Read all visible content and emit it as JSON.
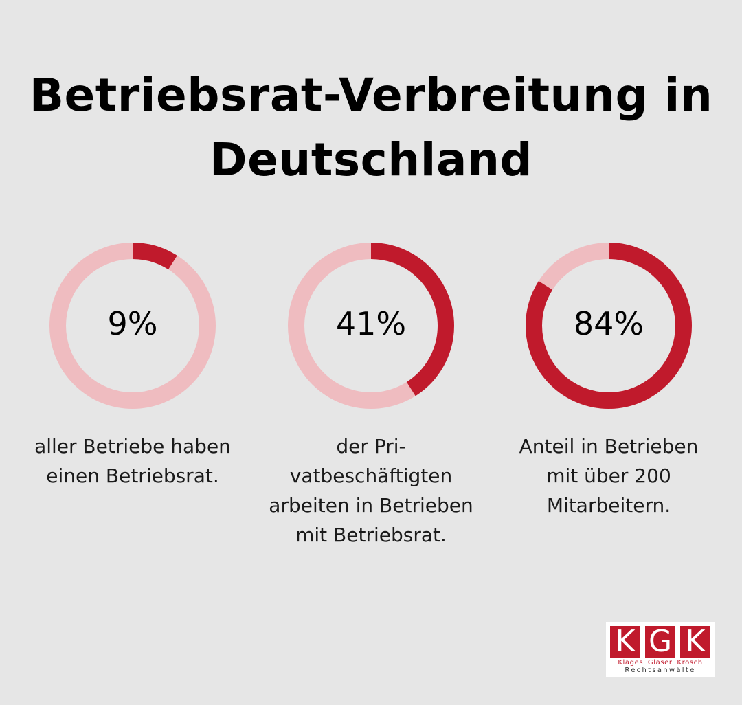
{
  "title": {
    "line1": "Betriebsrat-Verbreitung in",
    "line2": "Deutschland"
  },
  "colors": {
    "background": "#e6e6e6",
    "accent": "#c01a2c",
    "track": "#efbcc0"
  },
  "chart_data": [
    {
      "type": "pie",
      "value": 9,
      "value_label": "9%",
      "unit": "%",
      "caption_lines": [
        "aller Betriebe haben",
        "einen Betriebsrat."
      ]
    },
    {
      "type": "pie",
      "value": 41,
      "value_label": "41%",
      "unit": "%",
      "caption_lines": [
        "der Pri-",
        "vatbeschäftigten",
        "arbeiten in Betrieben",
        "mit Betriebsrat."
      ]
    },
    {
      "type": "pie",
      "value": 84,
      "value_label": "84%",
      "unit": "%",
      "caption_lines": [
        "Anteil in Betrieben",
        "mit über 200",
        "Mitarbeitern."
      ]
    }
  ],
  "logo": {
    "letters": [
      "K",
      "G",
      "K"
    ],
    "names": "Klages Glaser Krosch",
    "subtitle": "Rechtsanwälte"
  }
}
